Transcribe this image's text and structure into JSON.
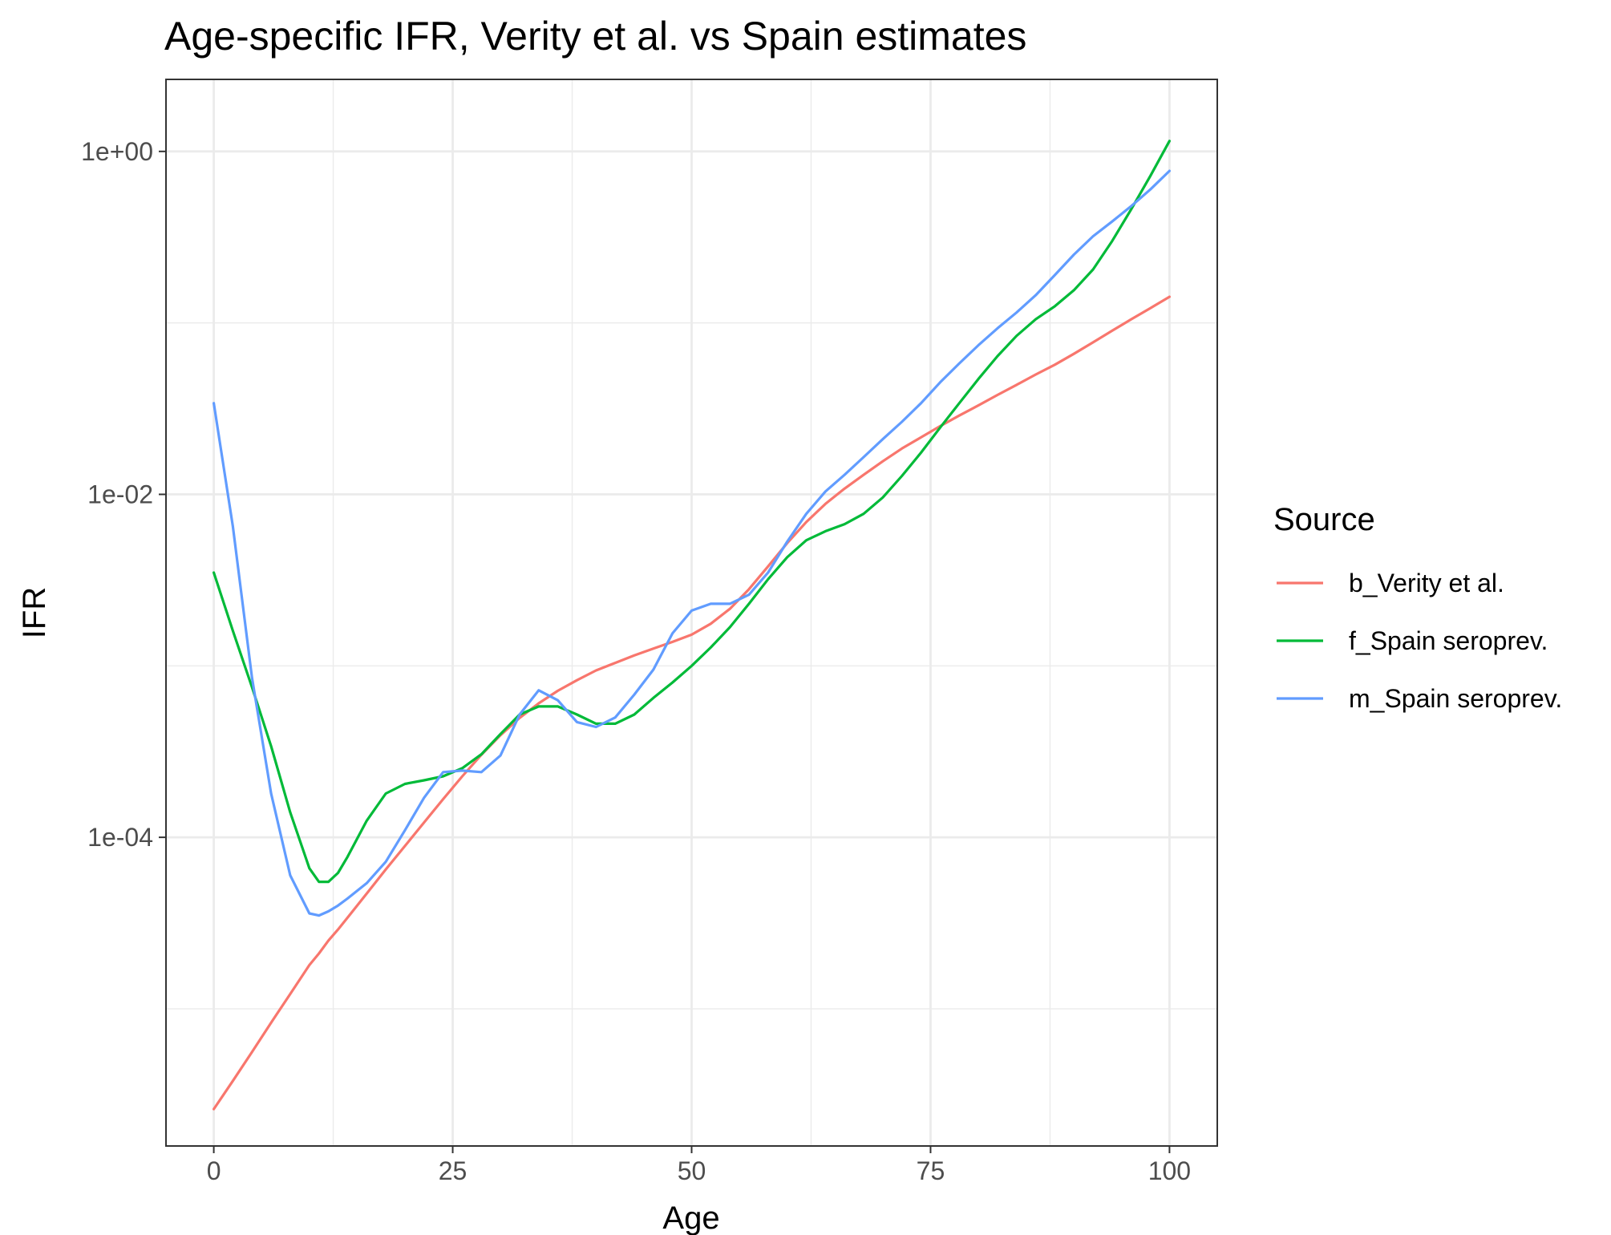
{
  "chart_data": {
    "type": "line",
    "title": "Age-specific IFR, Verity et al. vs Spain estimates",
    "xlabel": "Age",
    "ylabel": "IFR",
    "xlim": [
      -5,
      105
    ],
    "ylim_log10": [
      -5.8,
      0.42
    ],
    "y_scale": "log10",
    "grid": true,
    "x_ticks": [
      {
        "value": 0,
        "label": "0"
      },
      {
        "value": 25,
        "label": "25"
      },
      {
        "value": 50,
        "label": "50"
      },
      {
        "value": 75,
        "label": "75"
      },
      {
        "value": 100,
        "label": "100"
      }
    ],
    "y_ticks": [
      {
        "value": 0.0001,
        "label": "1e-04"
      },
      {
        "value": 0.01,
        "label": "1e-02"
      },
      {
        "value": 1,
        "label": "1e+00"
      }
    ],
    "legend": {
      "title": "Source",
      "placement": "right"
    },
    "x": [
      0,
      2,
      4,
      6,
      8,
      10,
      11,
      12,
      13,
      14,
      16,
      18,
      20,
      22,
      24,
      26,
      28,
      30,
      32,
      34,
      36,
      38,
      40,
      42,
      44,
      46,
      48,
      50,
      52,
      54,
      56,
      58,
      60,
      62,
      64,
      66,
      68,
      70,
      72,
      74,
      76,
      78,
      80,
      82,
      84,
      86,
      88,
      90,
      92,
      94,
      96,
      98,
      100
    ],
    "series": [
      {
        "name": "b_Verity et al.",
        "color": "#F8766D",
        "values": [
          2.6e-06,
          3.8e-06,
          5.6e-06,
          8.3e-06,
          1.22e-05,
          1.8e-05,
          2.1e-05,
          2.5e-05,
          2.9e-05,
          3.4e-05,
          4.7e-05,
          6.5e-05,
          8.9e-05,
          0.000122,
          0.000167,
          0.000227,
          0.000303,
          0.000394,
          0.000497,
          0.000605,
          0.000715,
          0.000825,
          0.00094,
          0.00104,
          0.00115,
          0.00126,
          0.00138,
          0.00152,
          0.00176,
          0.00215,
          0.0028,
          0.0038,
          0.0052,
          0.0069,
          0.0088,
          0.0108,
          0.013,
          0.0156,
          0.0185,
          0.0215,
          0.025,
          0.0288,
          0.033,
          0.038,
          0.0435,
          0.05,
          0.057,
          0.066,
          0.077,
          0.09,
          0.105,
          0.122,
          0.142
        ]
      },
      {
        "name": "f_Spain seroprev.",
        "color": "#00BA38",
        "values": [
          0.0035,
          0.0016,
          0.00075,
          0.00034,
          0.00014,
          6.6e-05,
          5.5e-05,
          5.5e-05,
          6.2e-05,
          7.7e-05,
          0.000125,
          0.00018,
          0.000205,
          0.000215,
          0.000227,
          0.000253,
          0.000305,
          0.0004,
          0.00052,
          0.00058,
          0.00058,
          0.00052,
          0.00046,
          0.00046,
          0.00052,
          0.00065,
          0.0008,
          0.001,
          0.00128,
          0.00168,
          0.0023,
          0.0032,
          0.0043,
          0.0054,
          0.0061,
          0.0067,
          0.0077,
          0.0096,
          0.0128,
          0.0175,
          0.0245,
          0.034,
          0.047,
          0.064,
          0.084,
          0.105,
          0.125,
          0.155,
          0.205,
          0.3,
          0.46,
          0.72,
          1.15
        ]
      },
      {
        "name": "m_Spain seroprev.",
        "color": "#619CFF",
        "values": [
          0.034,
          0.0065,
          0.00085,
          0.00018,
          6e-05,
          3.6e-05,
          3.5e-05,
          3.7e-05,
          4e-05,
          4.4e-05,
          5.4e-05,
          7.2e-05,
          0.00011,
          0.00017,
          0.00024,
          0.000245,
          0.00024,
          0.0003,
          0.00052,
          0.00072,
          0.00063,
          0.00047,
          0.00044,
          0.0005,
          0.00068,
          0.00095,
          0.00155,
          0.0021,
          0.0023,
          0.0023,
          0.0026,
          0.0035,
          0.0053,
          0.0077,
          0.0104,
          0.013,
          0.0165,
          0.021,
          0.0265,
          0.034,
          0.045,
          0.058,
          0.074,
          0.093,
          0.115,
          0.145,
          0.19,
          0.25,
          0.32,
          0.39,
          0.48,
          0.6,
          0.77
        ]
      }
    ]
  }
}
